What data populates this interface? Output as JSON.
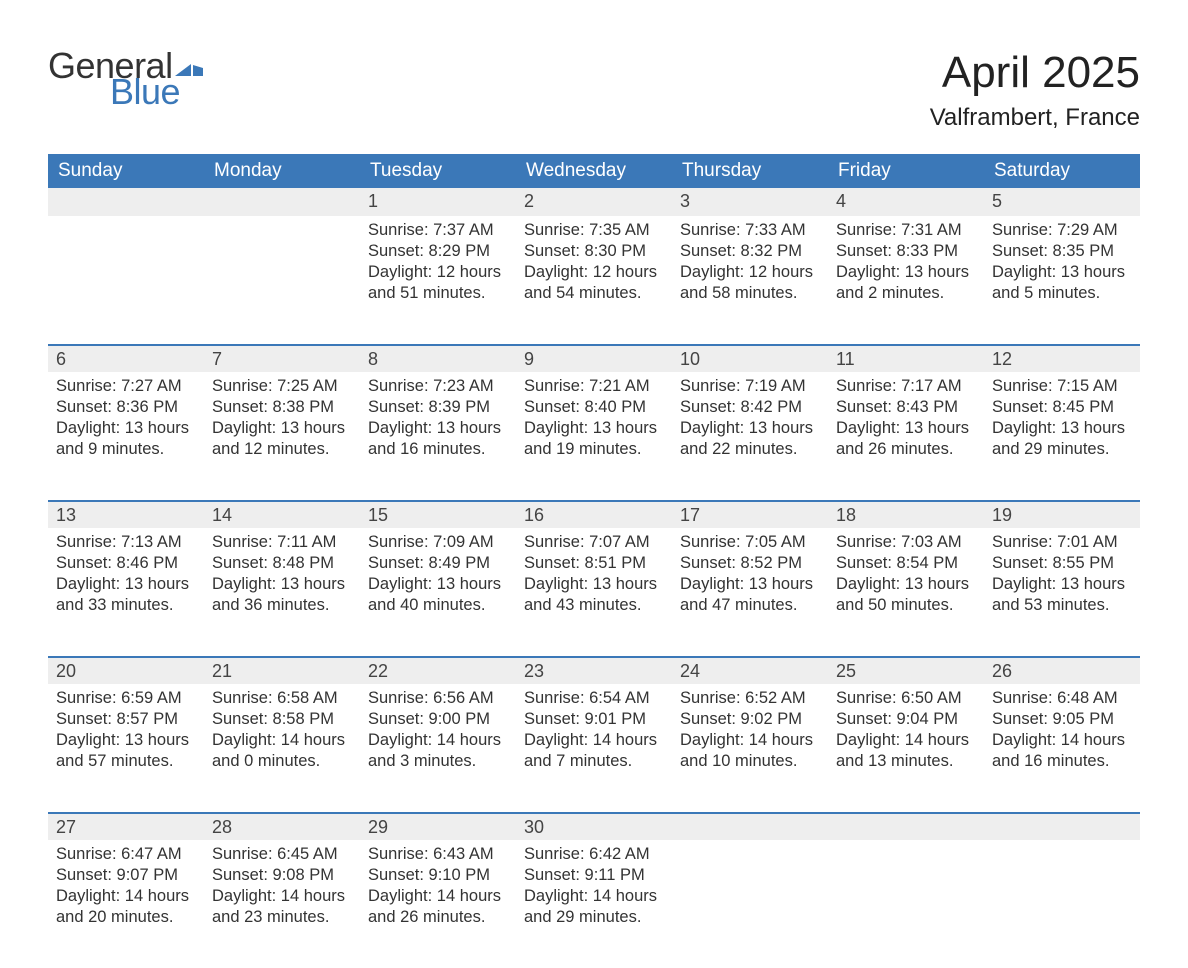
{
  "brand": {
    "word1": "General",
    "word2": "Blue",
    "word1_color": "#333333",
    "word2_color": "#3b78b8",
    "flag_color": "#3b78b8"
  },
  "header": {
    "month_title": "April 2025",
    "location": "Valframbert, France"
  },
  "styling": {
    "header_bg": "#3b78b8",
    "header_text": "#ffffff",
    "daynum_bg": "#eeeeee",
    "week_divider": "#3b78b8",
    "body_text": "#333333",
    "page_bg": "#ffffff",
    "title_fontsize": 44,
    "location_fontsize": 24,
    "weekday_fontsize": 19,
    "daynum_fontsize": 18,
    "cell_fontsize": 16.5
  },
  "weekdays": [
    "Sunday",
    "Monday",
    "Tuesday",
    "Wednesday",
    "Thursday",
    "Friday",
    "Saturday"
  ],
  "weeks": [
    [
      null,
      null,
      {
        "n": "1",
        "sunrise": "7:37 AM",
        "sunset": "8:29 PM",
        "daylight": "12 hours and 51 minutes."
      },
      {
        "n": "2",
        "sunrise": "7:35 AM",
        "sunset": "8:30 PM",
        "daylight": "12 hours and 54 minutes."
      },
      {
        "n": "3",
        "sunrise": "7:33 AM",
        "sunset": "8:32 PM",
        "daylight": "12 hours and 58 minutes."
      },
      {
        "n": "4",
        "sunrise": "7:31 AM",
        "sunset": "8:33 PM",
        "daylight": "13 hours and 2 minutes."
      },
      {
        "n": "5",
        "sunrise": "7:29 AM",
        "sunset": "8:35 PM",
        "daylight": "13 hours and 5 minutes."
      }
    ],
    [
      {
        "n": "6",
        "sunrise": "7:27 AM",
        "sunset": "8:36 PM",
        "daylight": "13 hours and 9 minutes."
      },
      {
        "n": "7",
        "sunrise": "7:25 AM",
        "sunset": "8:38 PM",
        "daylight": "13 hours and 12 minutes."
      },
      {
        "n": "8",
        "sunrise": "7:23 AM",
        "sunset": "8:39 PM",
        "daylight": "13 hours and 16 minutes."
      },
      {
        "n": "9",
        "sunrise": "7:21 AM",
        "sunset": "8:40 PM",
        "daylight": "13 hours and 19 minutes."
      },
      {
        "n": "10",
        "sunrise": "7:19 AM",
        "sunset": "8:42 PM",
        "daylight": "13 hours and 22 minutes."
      },
      {
        "n": "11",
        "sunrise": "7:17 AM",
        "sunset": "8:43 PM",
        "daylight": "13 hours and 26 minutes."
      },
      {
        "n": "12",
        "sunrise": "7:15 AM",
        "sunset": "8:45 PM",
        "daylight": "13 hours and 29 minutes."
      }
    ],
    [
      {
        "n": "13",
        "sunrise": "7:13 AM",
        "sunset": "8:46 PM",
        "daylight": "13 hours and 33 minutes."
      },
      {
        "n": "14",
        "sunrise": "7:11 AM",
        "sunset": "8:48 PM",
        "daylight": "13 hours and 36 minutes."
      },
      {
        "n": "15",
        "sunrise": "7:09 AM",
        "sunset": "8:49 PM",
        "daylight": "13 hours and 40 minutes."
      },
      {
        "n": "16",
        "sunrise": "7:07 AM",
        "sunset": "8:51 PM",
        "daylight": "13 hours and 43 minutes."
      },
      {
        "n": "17",
        "sunrise": "7:05 AM",
        "sunset": "8:52 PM",
        "daylight": "13 hours and 47 minutes."
      },
      {
        "n": "18",
        "sunrise": "7:03 AM",
        "sunset": "8:54 PM",
        "daylight": "13 hours and 50 minutes."
      },
      {
        "n": "19",
        "sunrise": "7:01 AM",
        "sunset": "8:55 PM",
        "daylight": "13 hours and 53 minutes."
      }
    ],
    [
      {
        "n": "20",
        "sunrise": "6:59 AM",
        "sunset": "8:57 PM",
        "daylight": "13 hours and 57 minutes."
      },
      {
        "n": "21",
        "sunrise": "6:58 AM",
        "sunset": "8:58 PM",
        "daylight": "14 hours and 0 minutes."
      },
      {
        "n": "22",
        "sunrise": "6:56 AM",
        "sunset": "9:00 PM",
        "daylight": "14 hours and 3 minutes."
      },
      {
        "n": "23",
        "sunrise": "6:54 AM",
        "sunset": "9:01 PM",
        "daylight": "14 hours and 7 minutes."
      },
      {
        "n": "24",
        "sunrise": "6:52 AM",
        "sunset": "9:02 PM",
        "daylight": "14 hours and 10 minutes."
      },
      {
        "n": "25",
        "sunrise": "6:50 AM",
        "sunset": "9:04 PM",
        "daylight": "14 hours and 13 minutes."
      },
      {
        "n": "26",
        "sunrise": "6:48 AM",
        "sunset": "9:05 PM",
        "daylight": "14 hours and 16 minutes."
      }
    ],
    [
      {
        "n": "27",
        "sunrise": "6:47 AM",
        "sunset": "9:07 PM",
        "daylight": "14 hours and 20 minutes."
      },
      {
        "n": "28",
        "sunrise": "6:45 AM",
        "sunset": "9:08 PM",
        "daylight": "14 hours and 23 minutes."
      },
      {
        "n": "29",
        "sunrise": "6:43 AM",
        "sunset": "9:10 PM",
        "daylight": "14 hours and 26 minutes."
      },
      {
        "n": "30",
        "sunrise": "6:42 AM",
        "sunset": "9:11 PM",
        "daylight": "14 hours and 29 minutes."
      },
      null,
      null,
      null
    ]
  ],
  "labels": {
    "sunrise": "Sunrise:",
    "sunset": "Sunset:",
    "daylight": "Daylight:"
  }
}
